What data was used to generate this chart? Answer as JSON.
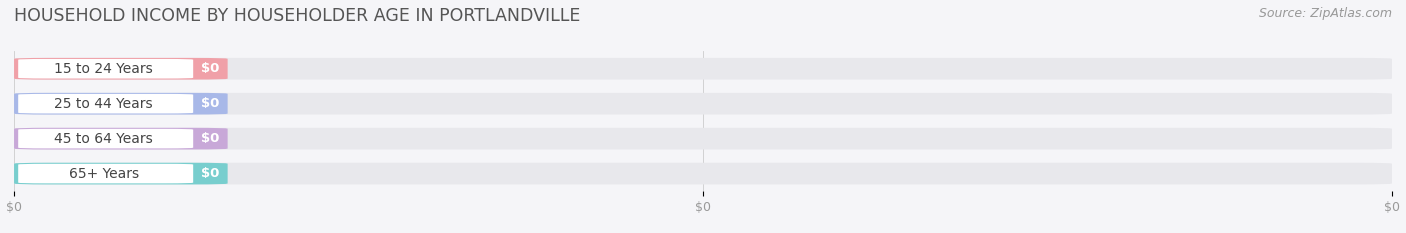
{
  "title": "HOUSEHOLD INCOME BY HOUSEHOLDER AGE IN PORTLANDVILLE",
  "source": "Source: ZipAtlas.com",
  "categories": [
    "15 to 24 Years",
    "25 to 44 Years",
    "45 to 64 Years",
    "65+ Years"
  ],
  "values": [
    0,
    0,
    0,
    0
  ],
  "bar_colors": [
    "#f0a0a8",
    "#a8b8e8",
    "#c8a8d8",
    "#78cece"
  ],
  "bar_bg_color": "#e8e8ec",
  "white_pill_color": "#ffffff",
  "background_color": "#f5f5f8",
  "xlim_max": 1.0,
  "title_fontsize": 12.5,
  "label_fontsize": 10,
  "tick_fontsize": 9,
  "source_fontsize": 9,
  "title_color": "#555555",
  "label_color": "#444444",
  "tick_color": "#999999",
  "value_label_color": "#ffffff",
  "grid_color": "#cccccc"
}
